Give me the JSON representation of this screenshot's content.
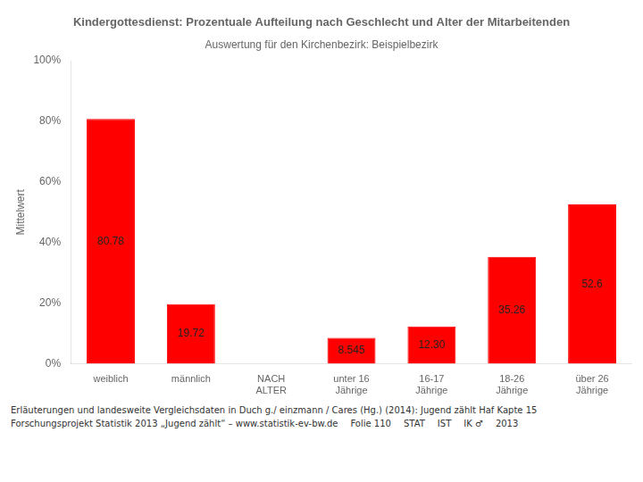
{
  "chart_data": {
    "type": "bar",
    "title": "Kindergottesdienst: Prozentuale Aufteilung nach Geschlecht und Alter der Mitarbeitenden",
    "subtitle": "Auswertung für den Kirchenbezirk: Beispielbezirk",
    "y_label": "Mittelwert",
    "categories": [
      "weiblich",
      "männlich",
      "NACH ALTER",
      "unter 16 Jährige",
      "16-17 Jährige",
      "18-26 Jährige",
      "über 26 Jährige"
    ],
    "values": [
      80.78,
      19.72,
      0.0,
      8.545,
      12.3,
      35.26,
      52.6
    ],
    "value_labels": [
      "80.78",
      "19.72",
      null,
      "8.545",
      "12.30",
      "35.26",
      "52.6"
    ],
    "data_labels": true,
    "color": "#FF0000",
    "ylim": [
      0,
      100
    ],
    "yticks": [
      {
        "value": 0,
        "label": "0%"
      },
      {
        "value": 20,
        "label": "20%"
      },
      {
        "value": 40,
        "label": "40%"
      },
      {
        "value": 60,
        "label": "60%"
      },
      {
        "value": 80,
        "label": "80%"
      },
      {
        "value": 100,
        "label": "100%"
      }
    ],
    "grid": false,
    "annotations": [
      "Erläuterungen und landesweite Vergleichsdaten in Duch  g./  einzmann / Cares (Hg.) (2014): Jugend zählt Haf  Kapte 15",
      "Forschungsprojekt Statistik 2013 „Jugend zählt“ –  www.statistik-ev-bw.de",
      "Folie 110",
      "STAT",
      "IST",
      "IK ♂",
      "2013"
    ]
  }
}
